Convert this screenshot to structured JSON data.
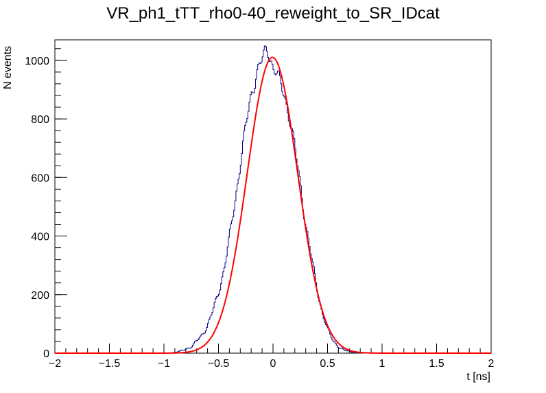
{
  "chart_data": {
    "type": "bar",
    "title": "VR_ph1_tTT_rho0-40_reweight_to_SR_IDcat",
    "xlabel": "t [ns]",
    "ylabel": "N events",
    "xlim": [
      -2,
      2
    ],
    "ylim": [
      0,
      1070
    ],
    "x_ticks": [
      "−2",
      "−1.5",
      "−1",
      "−0.5",
      "0",
      "0.5",
      "1",
      "1.5",
      "2"
    ],
    "x_tick_values": [
      -2,
      -1.5,
      -1,
      -0.5,
      0,
      0.5,
      1,
      1.5,
      2
    ],
    "y_ticks": [
      "0",
      "200",
      "400",
      "600",
      "800",
      "1000"
    ],
    "y_tick_values": [
      0,
      200,
      400,
      600,
      800,
      1000
    ],
    "grid": false,
    "legend": "none",
    "series": [
      {
        "kind": "histogram-step",
        "color": "#000080",
        "bin_width": 0.01,
        "x": [
          -0.95,
          -0.9,
          -0.85,
          -0.8,
          -0.75,
          -0.7,
          -0.65,
          -0.6,
          -0.55,
          -0.5,
          -0.45,
          -0.4,
          -0.35,
          -0.3,
          -0.25,
          -0.2,
          -0.15,
          -0.1,
          -0.05,
          -0.02,
          0.0,
          0.03,
          0.05,
          0.1,
          0.15,
          0.2,
          0.25,
          0.3,
          0.35,
          0.4,
          0.45,
          0.5,
          0.55,
          0.6,
          0.65,
          0.7,
          0.75,
          0.8,
          0.85,
          0.9,
          0.95
        ],
        "values": [
          0,
          3,
          6,
          14,
          22,
          40,
          62,
          95,
          145,
          205,
          285,
          390,
          510,
          650,
          770,
          880,
          960,
          1000,
          1040,
          1010,
          975,
          960,
          935,
          890,
          810,
          700,
          580,
          440,
          330,
          230,
          140,
          80,
          45,
          22,
          10,
          6,
          3,
          2,
          1,
          0,
          0
        ]
      },
      {
        "kind": "fit-curve",
        "color": "#ff0000",
        "name": "",
        "amplitude": 1010,
        "mean": -0.005,
        "sigma": 0.232
      }
    ]
  }
}
